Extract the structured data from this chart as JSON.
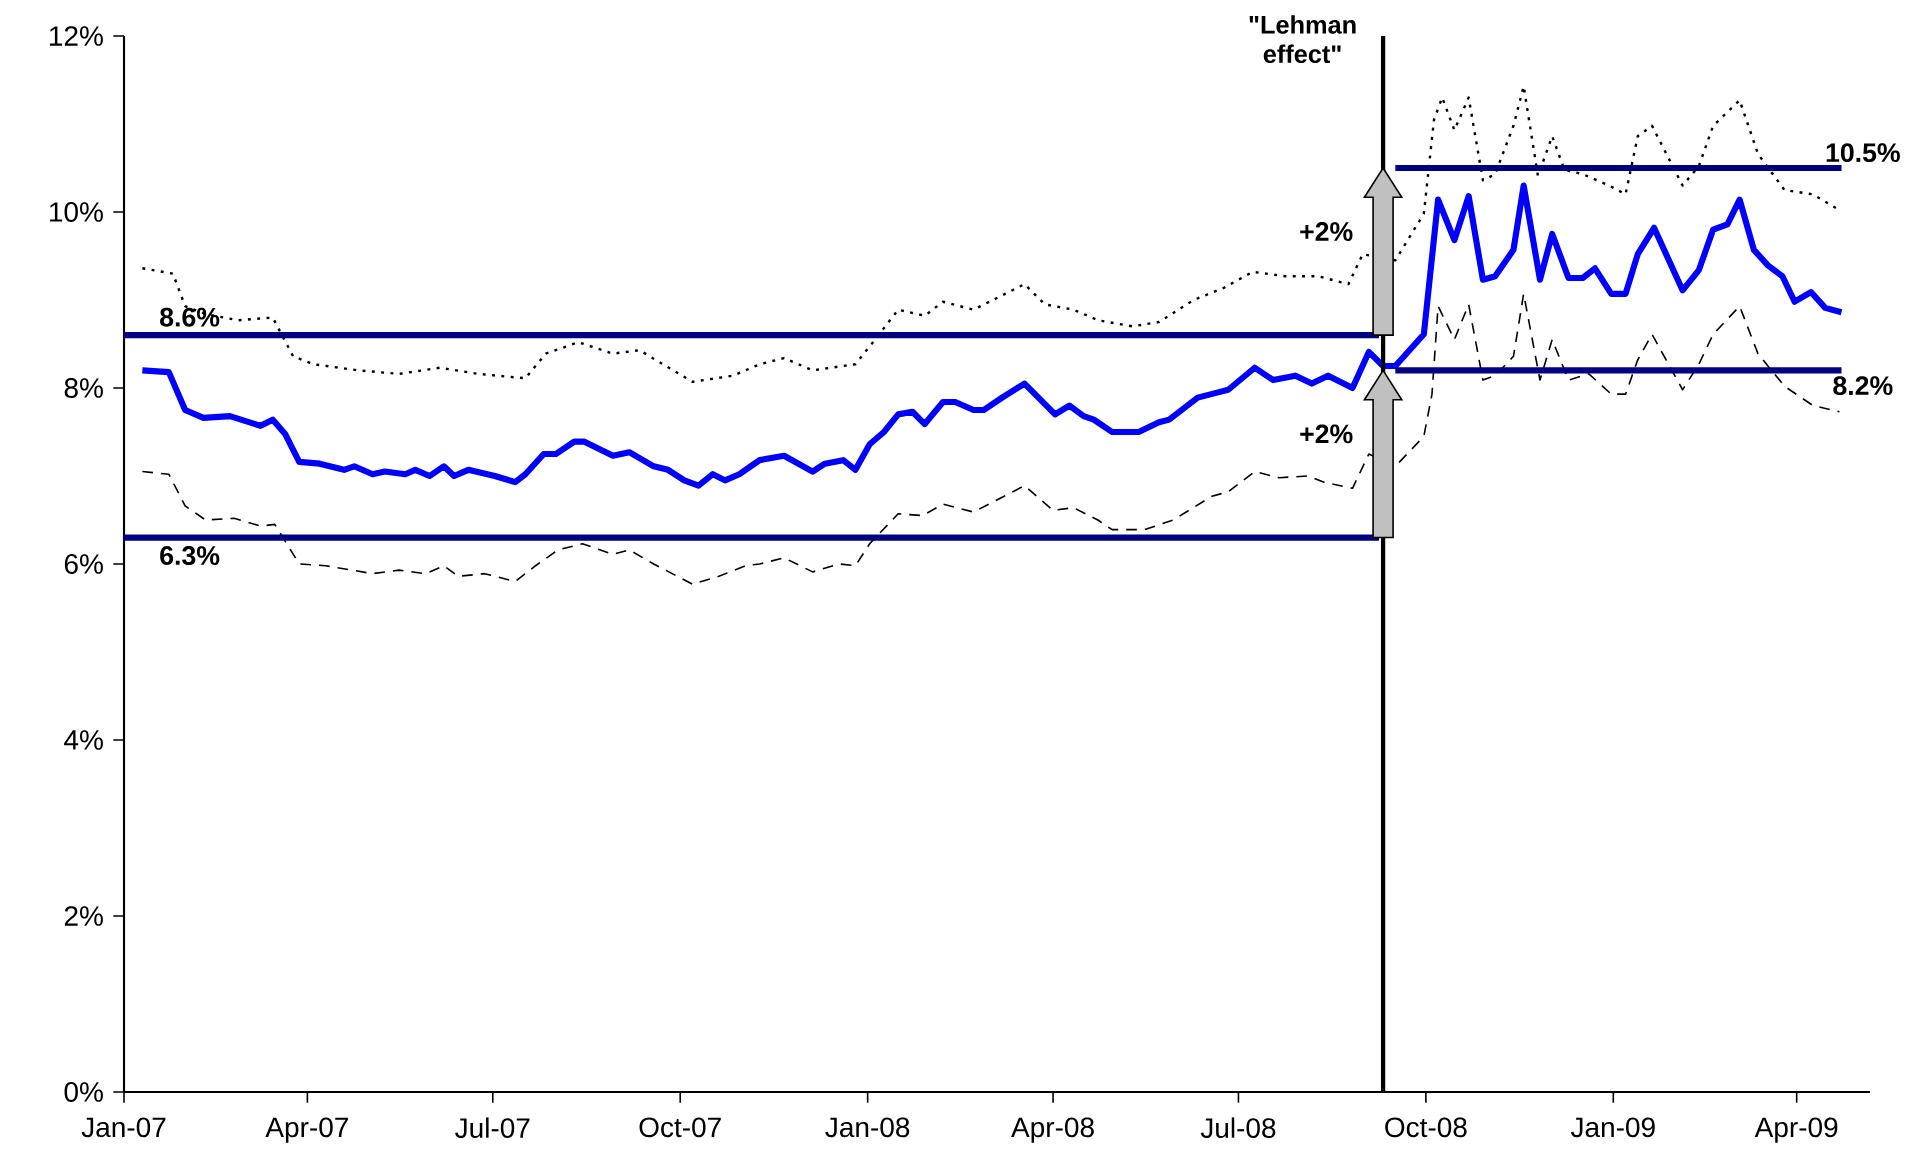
{
  "chart_data": {
    "type": "line",
    "xlim": [
      "2007-01-01",
      "2009-05-07"
    ],
    "ylim": [
      0,
      12
    ],
    "xticks": [
      {
        "value": "2007-01-01",
        "label": "Jan-07"
      },
      {
        "value": "2007-04-01",
        "label": "Apr-07"
      },
      {
        "value": "2007-07-01",
        "label": "Jul-07"
      },
      {
        "value": "2007-10-01",
        "label": "Oct-07"
      },
      {
        "value": "2008-01-01",
        "label": "Jan-08"
      },
      {
        "value": "2008-04-01",
        "label": "Apr-08"
      },
      {
        "value": "2008-07-01",
        "label": "Jul-08"
      },
      {
        "value": "2008-10-01",
        "label": "Oct-08"
      },
      {
        "value": "2009-01-01",
        "label": "Jan-09"
      },
      {
        "value": "2009-04-01",
        "label": "Apr-09"
      }
    ],
    "yticks": [
      {
        "value": 0,
        "label": "0%"
      },
      {
        "value": 2,
        "label": "2%"
      },
      {
        "value": 4,
        "label": "4%"
      },
      {
        "value": 6,
        "label": "6%"
      },
      {
        "value": 8,
        "label": "8%"
      },
      {
        "value": 10,
        "label": "10%"
      },
      {
        "value": 12,
        "label": "12%"
      }
    ],
    "series": [
      {
        "color": "#0000ff",
        "line_style": "solid",
        "x": [
          "2007-01-10",
          "2007-01-23",
          "2007-01-31",
          "2007-02-09",
          "2007-02-22",
          "2007-03-09",
          "2007-03-15",
          "2007-03-21",
          "2007-03-28",
          "2007-04-07",
          "2007-04-19",
          "2007-04-24",
          "2007-05-03",
          "2007-05-09",
          "2007-05-19",
          "2007-05-24",
          "2007-05-31",
          "2007-06-07",
          "2007-06-12",
          "2007-06-19",
          "2007-07-02",
          "2007-07-12",
          "2007-07-17",
          "2007-07-26",
          "2007-08-01",
          "2007-08-10",
          "2007-08-15",
          "2007-08-29",
          "2007-09-06",
          "2007-09-18",
          "2007-09-25",
          "2007-10-03",
          "2007-10-10",
          "2007-10-17",
          "2007-10-23",
          "2007-10-30",
          "2007-11-09",
          "2007-11-21",
          "2007-12-05",
          "2007-12-11",
          "2007-12-20",
          "2007-12-26",
          "2008-01-02",
          "2008-01-09",
          "2008-01-16",
          "2008-01-23",
          "2008-01-29",
          "2008-02-07",
          "2008-02-13",
          "2008-02-22",
          "2008-02-27",
          "2008-03-07",
          "2008-03-18",
          "2008-04-02",
          "2008-04-09",
          "2008-04-16",
          "2008-04-21",
          "2008-04-30",
          "2008-05-13",
          "2008-05-23",
          "2008-05-28",
          "2008-06-11",
          "2008-06-21",
          "2008-06-26",
          "2008-07-09",
          "2008-07-18",
          "2008-07-29",
          "2008-08-06",
          "2008-08-14",
          "2008-08-26",
          "2008-09-03",
          "2008-09-10",
          "2008-09-16",
          "2008-09-30",
          "2008-10-07",
          "2008-10-15",
          "2008-10-22",
          "2008-10-29",
          "2008-11-04",
          "2008-11-13",
          "2008-11-18",
          "2008-11-26",
          "2008-12-02",
          "2008-12-10",
          "2008-12-17",
          "2008-12-23",
          "2008-12-31",
          "2009-01-07",
          "2009-01-13",
          "2009-01-21",
          "2009-02-04",
          "2009-02-12",
          "2009-02-19",
          "2009-02-26",
          "2009-03-04",
          "2009-03-11",
          "2009-03-18",
          "2009-03-25",
          "2009-03-31",
          "2009-04-08",
          "2009-04-15",
          "2009-04-23"
        ],
        "values": [
          8.2,
          8.18,
          7.75,
          7.66,
          7.68,
          7.57,
          7.64,
          7.48,
          7.16,
          7.14,
          7.07,
          7.11,
          7.02,
          7.05,
          7.02,
          7.07,
          7.0,
          7.11,
          7.0,
          7.07,
          7.0,
          6.93,
          7.02,
          7.25,
          7.25,
          7.39,
          7.39,
          7.23,
          7.27,
          7.11,
          7.07,
          6.95,
          6.89,
          7.02,
          6.95,
          7.02,
          7.18,
          7.23,
          7.05,
          7.14,
          7.18,
          7.07,
          7.36,
          7.5,
          7.7,
          7.73,
          7.59,
          7.84,
          7.84,
          7.75,
          7.75,
          7.89,
          8.05,
          7.7,
          7.8,
          7.68,
          7.64,
          7.5,
          7.5,
          7.61,
          7.64,
          7.89,
          7.95,
          7.98,
          8.23,
          8.09,
          8.14,
          8.05,
          8.14,
          8.0,
          8.41,
          8.25,
          8.25,
          8.61,
          10.14,
          9.68,
          10.18,
          9.23,
          9.27,
          9.57,
          10.3,
          9.23,
          9.75,
          9.25,
          9.25,
          9.36,
          9.07,
          9.07,
          9.52,
          9.82,
          9.11,
          9.34,
          9.8,
          9.86,
          10.14,
          9.57,
          9.39,
          9.27,
          8.98,
          9.09,
          8.91,
          8.86
        ]
      },
      {
        "color": "#000000",
        "line_style": "dotted",
        "x": [
          "2007-01-10",
          "2007-01-25",
          "2007-01-31",
          "2007-02-10",
          "2007-02-26",
          "2007-03-15",
          "2007-03-25",
          "2007-04-04",
          "2007-04-26",
          "2007-05-16",
          "2007-06-05",
          "2007-06-24",
          "2007-07-17",
          "2007-07-27",
          "2007-08-12",
          "2007-08-29",
          "2007-09-11",
          "2007-10-07",
          "2007-10-27",
          "2007-11-09",
          "2007-11-21",
          "2007-12-05",
          "2007-12-26",
          "2008-01-06",
          "2008-01-16",
          "2008-01-29",
          "2008-02-07",
          "2008-02-22",
          "2008-03-18",
          "2008-03-28",
          "2008-04-11",
          "2008-04-23",
          "2008-05-10",
          "2008-05-23",
          "2008-06-09",
          "2008-06-24",
          "2008-07-08",
          "2008-07-24",
          "2008-08-09",
          "2008-08-24",
          "2008-08-31",
          "2008-09-16",
          "2008-09-30",
          "2008-10-05",
          "2008-10-09",
          "2008-10-15",
          "2008-10-22",
          "2008-10-29",
          "2008-11-04",
          "2008-11-13",
          "2008-11-18",
          "2008-11-25",
          "2008-12-02",
          "2008-12-08",
          "2008-12-17",
          "2008-12-30",
          "2009-01-07",
          "2009-01-13",
          "2009-01-20",
          "2009-02-04",
          "2009-02-12",
          "2009-02-19",
          "2009-03-04",
          "2009-03-13",
          "2009-03-26",
          "2009-04-09",
          "2009-04-22"
        ],
        "values": [
          9.36,
          9.3,
          8.93,
          8.84,
          8.77,
          8.8,
          8.36,
          8.27,
          8.2,
          8.16,
          8.23,
          8.16,
          8.11,
          8.39,
          8.52,
          8.39,
          8.43,
          8.07,
          8.14,
          8.27,
          8.34,
          8.2,
          8.27,
          8.59,
          8.89,
          8.82,
          8.98,
          8.89,
          9.18,
          8.95,
          8.89,
          8.77,
          8.7,
          8.75,
          9.0,
          9.14,
          9.32,
          9.27,
          9.27,
          9.18,
          9.52,
          9.45,
          9.98,
          11.05,
          11.3,
          10.93,
          11.3,
          10.36,
          10.43,
          10.98,
          11.43,
          10.41,
          10.86,
          10.48,
          10.43,
          10.3,
          10.2,
          10.86,
          10.98,
          10.3,
          10.52,
          10.98,
          11.27,
          10.66,
          10.25,
          10.2,
          10.02
        ]
      },
      {
        "color": "#000000",
        "line_style": "dashed",
        "x": [
          "2007-01-10",
          "2007-01-23",
          "2007-01-31",
          "2007-02-10",
          "2007-02-24",
          "2007-03-09",
          "2007-03-16",
          "2007-03-28",
          "2007-04-10",
          "2007-04-23",
          "2007-05-03",
          "2007-05-16",
          "2007-05-29",
          "2007-06-07",
          "2007-06-14",
          "2007-06-27",
          "2007-07-12",
          "2007-07-22",
          "2007-08-02",
          "2007-08-14",
          "2007-08-29",
          "2007-09-06",
          "2007-09-18",
          "2007-10-07",
          "2007-10-20",
          "2007-11-02",
          "2007-11-09",
          "2007-11-21",
          "2007-12-05",
          "2007-12-18",
          "2007-12-26",
          "2008-01-02",
          "2008-01-16",
          "2008-01-28",
          "2008-02-07",
          "2008-02-22",
          "2008-03-18",
          "2008-04-01",
          "2008-04-11",
          "2008-04-23",
          "2008-04-30",
          "2008-05-16",
          "2008-05-30",
          "2008-06-18",
          "2008-06-26",
          "2008-07-09",
          "2008-07-21",
          "2008-08-04",
          "2008-08-12",
          "2008-08-26",
          "2008-09-03",
          "2008-09-16",
          "2008-09-30",
          "2008-10-04",
          "2008-10-07",
          "2008-10-15",
          "2008-10-22",
          "2008-10-29",
          "2008-11-04",
          "2008-11-13",
          "2008-11-18",
          "2008-11-26",
          "2008-12-02",
          "2008-12-10",
          "2008-12-20",
          "2008-12-31",
          "2009-01-07",
          "2009-01-13",
          "2009-01-20",
          "2009-02-04",
          "2009-02-12",
          "2009-02-19",
          "2009-03-04",
          "2009-03-13",
          "2009-03-26",
          "2009-04-09",
          "2009-04-22"
        ],
        "values": [
          7.05,
          7.02,
          6.66,
          6.5,
          6.52,
          6.43,
          6.45,
          6.0,
          5.98,
          5.93,
          5.89,
          5.93,
          5.89,
          5.98,
          5.86,
          5.89,
          5.8,
          5.98,
          6.16,
          6.23,
          6.11,
          6.16,
          6.0,
          5.77,
          5.86,
          5.98,
          6.0,
          6.07,
          5.91,
          6.0,
          5.98,
          6.23,
          6.57,
          6.55,
          6.68,
          6.59,
          6.89,
          6.61,
          6.64,
          6.5,
          6.39,
          6.39,
          6.5,
          6.77,
          6.82,
          7.05,
          6.98,
          7.0,
          6.93,
          6.86,
          7.25,
          7.11,
          7.45,
          7.93,
          8.93,
          8.55,
          8.95,
          8.09,
          8.14,
          8.36,
          9.07,
          8.09,
          8.55,
          8.09,
          8.16,
          7.93,
          7.93,
          8.32,
          8.61,
          7.98,
          8.27,
          8.61,
          8.93,
          8.39,
          8.02,
          7.8,
          7.73
        ]
      },
      {
        "color": "#000080",
        "line_style": "solid",
        "x": [
          "2007-01-01",
          "2008-09-08"
        ],
        "values": [
          8.6,
          8.6
        ]
      },
      {
        "color": "#000080",
        "line_style": "solid",
        "x": [
          "2007-01-01",
          "2008-09-08"
        ],
        "values": [
          6.3,
          6.3
        ]
      },
      {
        "color": "#000080",
        "line_style": "solid",
        "x": [
          "2008-09-16",
          "2009-04-23"
        ],
        "values": [
          10.5,
          10.5
        ]
      },
      {
        "color": "#000080",
        "line_style": "solid",
        "x": [
          "2008-09-16",
          "2009-04-23"
        ],
        "values": [
          8.2,
          8.2
        ]
      }
    ],
    "ref_lines": [
      {
        "axis": "x",
        "value": "2008-09-10",
        "label": "\"Lehman effect\"",
        "color": "#000000"
      }
    ],
    "annotations": [
      {
        "text": "8.6%",
        "x": "2007-01-01",
        "y": 8.6
      },
      {
        "text": "6.3%",
        "x": "2007-01-01",
        "y": 6.3
      },
      {
        "text": "10.5%",
        "x": "2009-04-23",
        "y": 10.5
      },
      {
        "text": "8.2%",
        "x": "2009-04-23",
        "y": 8.2
      },
      "+2%",
      "+2%"
    ]
  }
}
